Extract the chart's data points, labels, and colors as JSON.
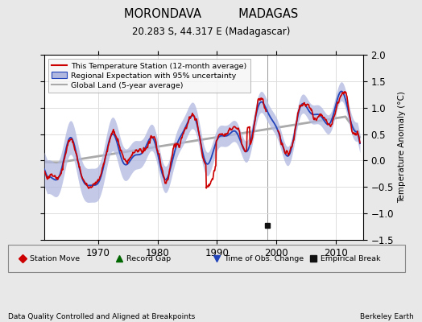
{
  "title1": "MORONDAVA          MADAGAS",
  "title2": "20.283 S, 44.317 E (Madagascar)",
  "ylabel": "Temperature Anomaly (°C)",
  "xlabel_left": "Data Quality Controlled and Aligned at Breakpoints",
  "xlabel_right": "Berkeley Earth",
  "xlim": [
    1961,
    2014.5
  ],
  "ylim": [
    -1.5,
    2.0
  ],
  "yticks": [
    -1.5,
    -1.0,
    -0.5,
    0.0,
    0.5,
    1.0,
    1.5,
    2.0
  ],
  "xticks": [
    1970,
    1980,
    1990,
    2000,
    2010
  ],
  "background_color": "#e8e8e8",
  "plot_background": "#ffffff",
  "red_color": "#cc0000",
  "blue_color": "#2244bb",
  "blue_fill": "#b0b8e0",
  "gray_color": "#aaaaaa",
  "empirical_break_x": 1998.5,
  "empirical_break_y": -1.22,
  "legend_entries": [
    "This Temperature Station (12-month average)",
    "Regional Expectation with 95% uncertainty",
    "Global Land (5-year average)"
  ],
  "bottom_legend": [
    {
      "marker": "D",
      "color": "#cc0000",
      "label": "Station Move"
    },
    {
      "marker": "^",
      "color": "#006600",
      "label": "Record Gap"
    },
    {
      "marker": "v",
      "color": "#2244bb",
      "label": "Time of Obs. Change"
    },
    {
      "marker": "s",
      "color": "#111111",
      "label": "Empirical Break"
    }
  ]
}
